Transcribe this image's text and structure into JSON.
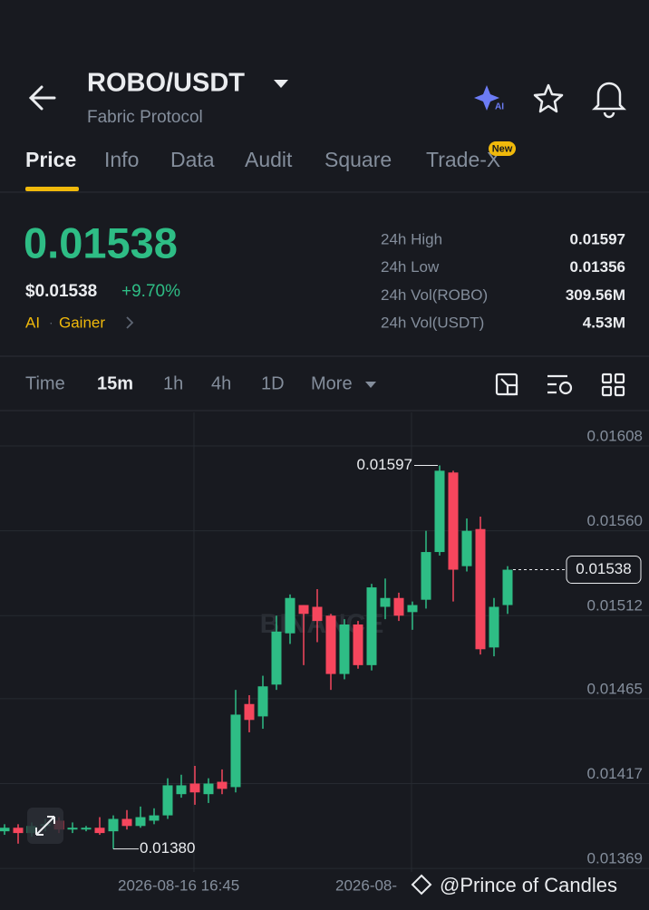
{
  "header": {
    "pair": "ROBO/USDT",
    "subtitle": "Fabric Protocol"
  },
  "tabs": [
    "Price",
    "Info",
    "Data",
    "Audit",
    "Square",
    "Trade-X"
  ],
  "new_badge": "New",
  "price": {
    "last": "0.01538",
    "usd": "$0.01538",
    "change": "+9.70%",
    "tags": [
      "AI",
      "Gainer"
    ]
  },
  "stats": [
    {
      "label": "24h High",
      "value": "0.01597"
    },
    {
      "label": "24h Low",
      "value": "0.01356"
    },
    {
      "label": "24h Vol(ROBO)",
      "value": "309.56M"
    },
    {
      "label": "24h Vol(USDT)",
      "value": "4.53M"
    }
  ],
  "intervals": [
    "Time",
    "15m",
    "1h",
    "4h",
    "1D",
    "More"
  ],
  "chart_data": {
    "type": "candlestick",
    "up_color": "#2ebd85",
    "down_color": "#f6465d",
    "categories": [
      null,
      null,
      null,
      null,
      null,
      null,
      null,
      null,
      null,
      null,
      null,
      null,
      null,
      null,
      "2026-08-16 16:45",
      null,
      null,
      null,
      null,
      null,
      null,
      null,
      null,
      null,
      null,
      null,
      null,
      null,
      null,
      null,
      "2026-08-",
      null,
      null,
      null,
      null,
      null,
      null,
      null
    ],
    "open": [
      0.0139,
      0.01392,
      0.01389,
      0.01393,
      0.01396,
      0.01391,
      0.01391,
      0.01392,
      0.0139,
      0.01397,
      0.01393,
      0.01396,
      0.01399,
      0.01411,
      0.01417,
      0.01411,
      0.01418,
      0.01415,
      0.01462,
      0.01455,
      0.01473,
      0.01502,
      0.01518,
      0.01517,
      0.01512,
      0.01479,
      0.01507,
      0.01484,
      0.01517,
      0.01522,
      0.01514,
      0.01521,
      0.01548,
      0.01593,
      0.0154,
      0.01561,
      0.01494,
      0.01518
    ],
    "high": [
      0.01394,
      0.01394,
      0.01395,
      0.01397,
      0.01398,
      0.01395,
      0.01393,
      0.01398,
      0.01399,
      0.01402,
      0.01404,
      0.01403,
      0.0142,
      0.01422,
      0.01427,
      0.0142,
      0.01425,
      0.0147,
      0.01467,
      0.01478,
      0.01512,
      0.01524,
      0.01518,
      0.01527,
      0.01513,
      0.0151,
      0.01509,
      0.0153,
      0.01533,
      0.01525,
      0.0152,
      0.0156,
      0.01597,
      0.01594,
      0.01567,
      0.01568,
      0.01522,
      0.0154
    ],
    "low": [
      0.01388,
      0.01383,
      0.01387,
      0.0139,
      0.01389,
      0.01389,
      0.0139,
      0.01388,
      0.0138,
      0.01391,
      0.01392,
      0.01394,
      0.01397,
      0.01409,
      0.01405,
      0.01406,
      0.01411,
      0.01412,
      0.01446,
      0.01448,
      0.0147,
      0.01496,
      0.01484,
      0.01497,
      0.0147,
      0.01476,
      0.01482,
      0.01481,
      0.0151,
      0.01509,
      0.01504,
      0.01516,
      0.01546,
      0.0152,
      0.01537,
      0.0149,
      0.01489,
      0.01513
    ],
    "close": [
      0.01392,
      0.01389,
      0.01393,
      0.01394,
      0.01391,
      0.01392,
      0.01392,
      0.01389,
      0.01397,
      0.01393,
      0.01398,
      0.01399,
      0.01416,
      0.01416,
      0.01412,
      0.01417,
      0.01414,
      0.01456,
      0.01453,
      0.01472,
      0.01503,
      0.01522,
      0.01513,
      0.01509,
      0.01479,
      0.01507,
      0.01484,
      0.01528,
      0.01522,
      0.01512,
      0.01518,
      0.01548,
      0.01594,
      0.01538,
      0.0156,
      0.01493,
      0.01517,
      0.01538
    ],
    "ylim": [
      0.01367,
      0.01627
    ],
    "yticks": [
      0.01608,
      {
        "value": 0.0156,
        "label": "0.01560"
      },
      0.01512,
      0.01465,
      0.01417,
      0.01369
    ],
    "grid": true,
    "high_marker": 0.01597,
    "low_marker": {
      "value": 0.0138,
      "label": "0.01380"
    },
    "last_marker": 0.01538,
    "watermark": "BINANCE"
  },
  "credit": "@Prince of Candles"
}
